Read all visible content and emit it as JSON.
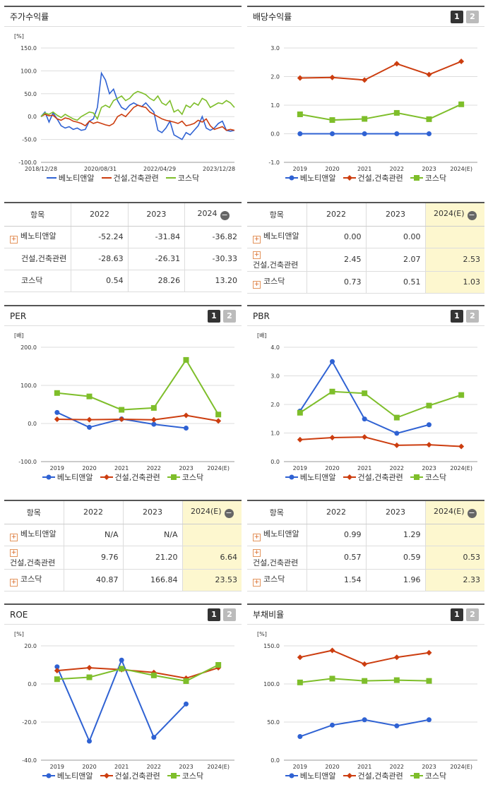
{
  "colors": {
    "s0": "#2f62d3",
    "s1": "#cc3d0f",
    "s2": "#7ebe2a"
  },
  "legend": [
    "베노티앤알",
    "건설,건축관련",
    "코스닥"
  ],
  "panels": {
    "stock": {
      "title": "주가수익률"
    },
    "dividend": {
      "title": "배당수익률",
      "btn1": "1",
      "btn2": "2"
    },
    "per": {
      "title": "PER",
      "btn1": "1",
      "btn2": "2"
    },
    "pbr": {
      "title": "PBR",
      "btn1": "1",
      "btn2": "2"
    },
    "roe": {
      "title": "ROE",
      "btn1": "1",
      "btn2": "2"
    },
    "debt": {
      "title": "부채비율",
      "btn1": "1",
      "btn2": "2"
    }
  },
  "tables": {
    "stock": {
      "header": [
        "항목",
        "2022",
        "2023",
        "2024"
      ],
      "rows": [
        {
          "name": "베노티앤알",
          "plus": true,
          "v": [
            "-52.24",
            "-31.84",
            "-36.82"
          ]
        },
        {
          "name": "건설,건축관련",
          "plus": false,
          "v": [
            "-28.63",
            "-26.31",
            "-30.33"
          ]
        },
        {
          "name": "코스닥",
          "plus": false,
          "v": [
            "0.54",
            "28.26",
            "13.20"
          ]
        }
      ]
    },
    "dividend": {
      "header": [
        "항목",
        "2022",
        "2023",
        "2024(E)"
      ],
      "rows": [
        {
          "name": "베노티앤알",
          "plus": true,
          "v": [
            "0.00",
            "0.00",
            ""
          ]
        },
        {
          "name": "건설,건축관련",
          "plus": true,
          "v": [
            "2.45",
            "2.07",
            "2.53"
          ]
        },
        {
          "name": "코스닥",
          "plus": true,
          "v": [
            "0.73",
            "0.51",
            "1.03"
          ]
        }
      ]
    },
    "per": {
      "header": [
        "항목",
        "2022",
        "2023",
        "2024(E)"
      ],
      "rows": [
        {
          "name": "베노티앤알",
          "plus": true,
          "v": [
            "N/A",
            "N/A",
            ""
          ]
        },
        {
          "name": "건설,건축관련",
          "plus": true,
          "v": [
            "9.76",
            "21.20",
            "6.64"
          ]
        },
        {
          "name": "코스닥",
          "plus": true,
          "v": [
            "40.87",
            "166.84",
            "23.53"
          ]
        }
      ]
    },
    "pbr": {
      "header": [
        "항목",
        "2022",
        "2023",
        "2024(E)"
      ],
      "rows": [
        {
          "name": "베노티앤알",
          "plus": true,
          "v": [
            "0.99",
            "1.29",
            ""
          ]
        },
        {
          "name": "건설,건축관련",
          "plus": true,
          "v": [
            "0.57",
            "0.59",
            "0.53"
          ]
        },
        {
          "name": "코스닥",
          "plus": true,
          "v": [
            "1.54",
            "1.96",
            "2.33"
          ]
        }
      ]
    }
  },
  "chart_data": [
    {
      "id": "stock",
      "type": "line",
      "unit_label": "[%]",
      "ylim": [
        -100,
        150
      ],
      "yticks": [
        "150.0",
        "100.0",
        "50.0",
        "0.0",
        "-50.0",
        "-100.0"
      ],
      "xticks": [
        "2018/12/28",
        "2020/08/31",
        "2022/04/29",
        "2023/12/28"
      ],
      "series": [
        {
          "name": "베노티앤알",
          "values": [
            0,
            10,
            -12,
            8,
            -5,
            -20,
            -25,
            -22,
            -28,
            -25,
            -30,
            -28,
            -10,
            -5,
            20,
            95,
            80,
            50,
            60,
            35,
            20,
            15,
            25,
            30,
            25,
            22,
            30,
            20,
            10,
            -30,
            -35,
            -25,
            -10,
            -40,
            -45,
            -50,
            -35,
            -40,
            -30,
            -20,
            0,
            -25,
            -30,
            -25,
            -15,
            -10,
            -30,
            -32,
            -30
          ]
        },
        {
          "name": "건설,건축관련",
          "values": [
            0,
            5,
            2,
            3,
            -5,
            -8,
            -3,
            -5,
            -10,
            -12,
            -15,
            -20,
            -10,
            -15,
            -12,
            -15,
            -18,
            -20,
            -15,
            0,
            5,
            0,
            10,
            20,
            25,
            22,
            20,
            10,
            5,
            0,
            -5,
            -8,
            -10,
            -12,
            -15,
            -10,
            -20,
            -18,
            -15,
            -8,
            -12,
            -5,
            -20,
            -28,
            -25,
            -22,
            -30,
            -28,
            -30
          ]
        },
        {
          "name": "코스닥",
          "values": [
            0,
            8,
            5,
            10,
            3,
            -2,
            5,
            0,
            -5,
            -8,
            0,
            5,
            10,
            8,
            -5,
            20,
            25,
            20,
            35,
            40,
            45,
            35,
            40,
            50,
            55,
            52,
            48,
            40,
            35,
            45,
            30,
            25,
            35,
            10,
            15,
            5,
            25,
            20,
            30,
            25,
            40,
            35,
            20,
            25,
            30,
            28,
            35,
            30,
            20
          ]
        }
      ]
    },
    {
      "id": "dividend",
      "type": "line",
      "unit_label": "",
      "ylim": [
        -1,
        3
      ],
      "yticks": [
        "3.0",
        "2.0",
        "1.0",
        "0.0",
        "-1.0"
      ],
      "categories": [
        "2019",
        "2020",
        "2021",
        "2022",
        "2023",
        "2024(E)"
      ],
      "series": [
        {
          "name": "베노티앤알",
          "values": [
            0.0,
            0.0,
            0.0,
            0.0,
            0.0,
            null
          ]
        },
        {
          "name": "건설,건축관련",
          "values": [
            1.95,
            1.97,
            1.88,
            2.45,
            2.07,
            2.53
          ]
        },
        {
          "name": "코스닥",
          "values": [
            0.68,
            0.48,
            0.52,
            0.73,
            0.51,
            1.03
          ]
        }
      ]
    },
    {
      "id": "per",
      "type": "line",
      "unit_label": "[배]",
      "ylim": [
        -100,
        200
      ],
      "yticks": [
        "200.0",
        "100.0",
        "0.0",
        "-100.0"
      ],
      "categories": [
        "2019",
        "2020",
        "2021",
        "2022",
        "2023",
        "2024(E)"
      ],
      "series": [
        {
          "name": "베노티앤알",
          "values": [
            29,
            -10,
            12,
            -2,
            -12,
            null
          ]
        },
        {
          "name": "건설,건축관련",
          "values": [
            11,
            10,
            11,
            9.76,
            21.2,
            6.64
          ]
        },
        {
          "name": "코스닥",
          "values": [
            80,
            71,
            36,
            40.87,
            166.84,
            23.53
          ]
        }
      ]
    },
    {
      "id": "pbr",
      "type": "line",
      "unit_label": "[배]",
      "ylim": [
        0,
        4
      ],
      "yticks": [
        "4.0",
        "3.0",
        "2.0",
        "1.0",
        "0.0"
      ],
      "categories": [
        "2019",
        "2020",
        "2021",
        "2022",
        "2023",
        "2024(E)"
      ],
      "series": [
        {
          "name": "베노티앤알",
          "values": [
            1.77,
            3.5,
            1.49,
            0.99,
            1.29,
            null
          ]
        },
        {
          "name": "건설,건축관련",
          "values": [
            0.77,
            0.84,
            0.86,
            0.57,
            0.59,
            0.53
          ]
        },
        {
          "name": "코스닥",
          "values": [
            1.71,
            2.45,
            2.39,
            1.54,
            1.96,
            2.33
          ]
        }
      ]
    },
    {
      "id": "roe",
      "type": "line",
      "unit_label": "[%]",
      "ylim": [
        -40,
        20
      ],
      "yticks": [
        "20.0",
        "0.0",
        "-20.0",
        "-40.0"
      ],
      "categories": [
        "2019",
        "2020",
        "2021",
        "2022",
        "2023",
        "2024(E)"
      ],
      "series": [
        {
          "name": "베노티앤알",
          "values": [
            9,
            -30,
            12.5,
            -28,
            -10.5,
            null
          ]
        },
        {
          "name": "건설,건축관련",
          "values": [
            7,
            8.5,
            7.5,
            6,
            3,
            8.5
          ]
        },
        {
          "name": "코스닥",
          "values": [
            2.5,
            3.5,
            8,
            4.5,
            1.5,
            10
          ]
        }
      ]
    },
    {
      "id": "debt",
      "type": "line",
      "unit_label": "[%]",
      "ylim": [
        0,
        150
      ],
      "yticks": [
        "150.0",
        "100.0",
        "50.0",
        "0.0"
      ],
      "categories": [
        "2019",
        "2020",
        "2021",
        "2022",
        "2023",
        "2024(E)"
      ],
      "series": [
        {
          "name": "베노티앤알",
          "values": [
            31,
            46,
            53,
            45,
            53,
            null
          ]
        },
        {
          "name": "건설,건축관련",
          "values": [
            135,
            144,
            126,
            135,
            141,
            null
          ]
        },
        {
          "name": "코스닥",
          "values": [
            102,
            107,
            104,
            105,
            104,
            null
          ]
        }
      ]
    }
  ]
}
